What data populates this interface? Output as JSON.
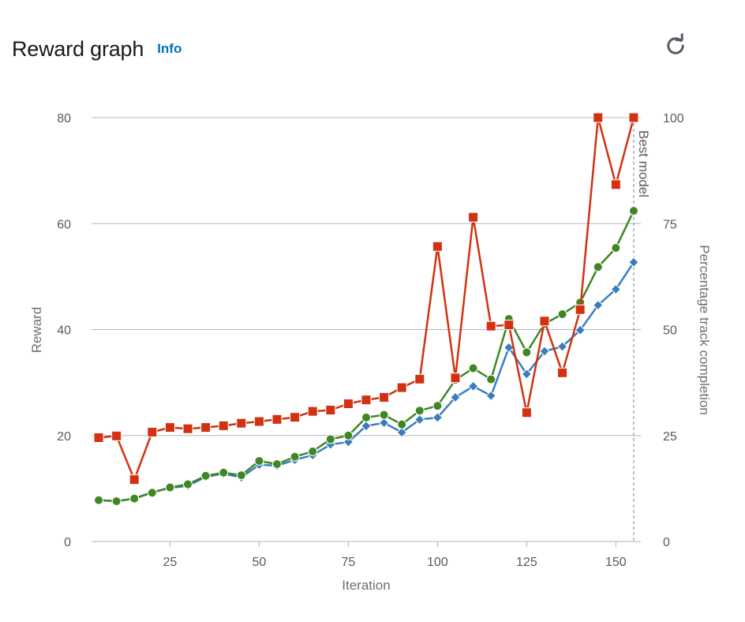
{
  "header": {
    "title": "Reward graph",
    "info_label": "Info"
  },
  "icons": {
    "refresh": "refresh-icon"
  },
  "chart_data": {
    "type": "line",
    "xlabel": "Iteration",
    "ylabel": "Reward",
    "y2label": "Percentage track completion",
    "xlim": [
      3,
      157
    ],
    "ylim": [
      0,
      80
    ],
    "y2lim": [
      0,
      100
    ],
    "x_ticks": [
      25,
      50,
      75,
      100,
      125,
      150
    ],
    "y_ticks": [
      0,
      20,
      40,
      60,
      80
    ],
    "y2_ticks": [
      0,
      25,
      50,
      75,
      100
    ],
    "grid": true,
    "best_model": {
      "x": 155,
      "label": "Best model"
    },
    "series": [
      {
        "axis": "left",
        "color": "#3a7dbf",
        "marker": "diamond",
        "x": [
          5,
          10,
          15,
          20,
          25,
          30,
          35,
          40,
          45,
          50,
          55,
          60,
          65,
          70,
          75,
          80,
          85,
          90,
          95,
          100,
          105,
          110,
          115,
          120,
          125,
          130,
          135,
          140,
          145,
          150,
          155
        ],
        "values": [
          7.8,
          7.6,
          8.1,
          9.3,
          10.1,
          10.5,
          12.2,
          12.8,
          12.1,
          14.5,
          14.3,
          15.4,
          16.3,
          18.3,
          18.8,
          21.8,
          22.4,
          20.6,
          23.0,
          23.4,
          27.2,
          29.3,
          27.5,
          36.6,
          31.6,
          35.9,
          36.8,
          39.9,
          44.6,
          47.6,
          52.7
        ]
      },
      {
        "axis": "left",
        "color": "#3f8624",
        "marker": "circle",
        "x": [
          5,
          10,
          15,
          20,
          25,
          30,
          35,
          40,
          45,
          50,
          55,
          60,
          65,
          70,
          75,
          80,
          85,
          90,
          95,
          100,
          105,
          110,
          115,
          120,
          125,
          130,
          135,
          140,
          145,
          150,
          155
        ],
        "values": [
          7.8,
          7.6,
          8.1,
          9.2,
          10.2,
          10.8,
          12.4,
          13.0,
          12.5,
          15.2,
          14.6,
          16.0,
          17.0,
          19.3,
          20.0,
          23.4,
          23.9,
          22.1,
          24.7,
          25.6,
          30.5,
          32.7,
          30.6,
          42.0,
          35.7,
          41.1,
          42.9,
          45.1,
          51.8,
          55.4,
          62.4
        ]
      },
      {
        "axis": "right",
        "color": "#d13212",
        "marker": "square",
        "x": [
          5,
          10,
          15,
          20,
          25,
          30,
          35,
          40,
          45,
          50,
          55,
          60,
          65,
          70,
          75,
          80,
          85,
          90,
          95,
          100,
          105,
          110,
          115,
          120,
          125,
          130,
          135,
          140,
          145,
          150,
          155
        ],
        "values": [
          24.5,
          24.9,
          14.6,
          25.8,
          26.9,
          26.6,
          26.9,
          27.3,
          27.9,
          28.3,
          28.8,
          29.3,
          30.7,
          31.0,
          32.5,
          33.4,
          34.0,
          36.3,
          38.3,
          69.6,
          38.6,
          76.5,
          50.8,
          51.1,
          30.4,
          52.0,
          39.8,
          54.7,
          100,
          84.2,
          100
        ]
      }
    ]
  }
}
